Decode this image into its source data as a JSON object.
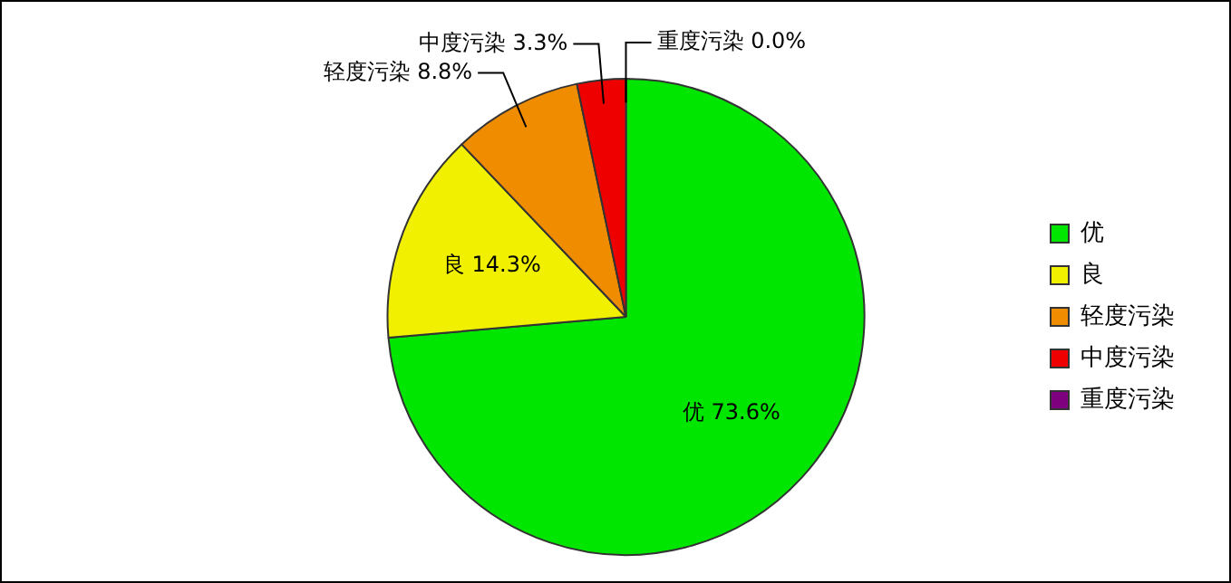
{
  "chart_data": {
    "type": "pie",
    "categories": [
      "优",
      "良",
      "轻度污染",
      "中度污染",
      "重度污染"
    ],
    "values": [
      73.6,
      14.3,
      8.8,
      3.3,
      0.0
    ],
    "value_labels": [
      "73.6%",
      "14.3%",
      "8.8%",
      "3.3%",
      "0.0%"
    ],
    "colors": [
      "#00e600",
      "#f0f000",
      "#f08c00",
      "#ee0000",
      "#7f007f"
    ],
    "legend": "right"
  }
}
